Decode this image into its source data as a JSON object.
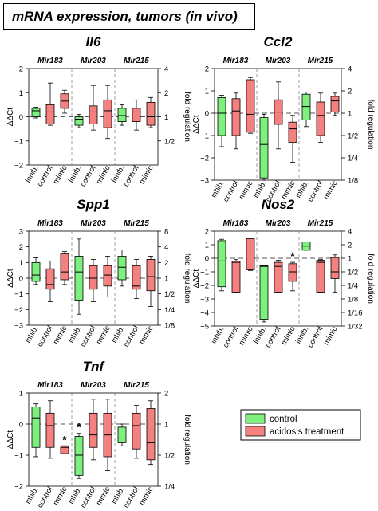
{
  "figure_title": "mRNA expression, tumors (in vivo)",
  "legend": {
    "items": [
      {
        "label": "control",
        "color": "#7ef07e"
      },
      {
        "label": "acidosis treatment",
        "color": "#f58080"
      }
    ]
  },
  "colors": {
    "control": "#7ef07e",
    "acidosis": "#f58080"
  },
  "chart_data": [
    {
      "type": "box",
      "title": "Il6",
      "ylabel": "ΔΔCt",
      "y2label": "fold regulation",
      "ylim": [
        -2,
        2
      ],
      "yticks": [
        -2,
        -1,
        0,
        1,
        2
      ],
      "y2ticks": [
        "4",
        "2",
        "1",
        "1/2"
      ],
      "groups": [
        "Mir183",
        "Mir203",
        "Mir215"
      ],
      "categories": [
        "inhib.",
        "control",
        "mimic"
      ],
      "boxes": [
        {
          "group": "Mir183",
          "category": "inhib.",
          "series": "control",
          "min": -0.05,
          "q1": 0.0,
          "median": 0.25,
          "q3": 0.35,
          "max": 0.4
        },
        {
          "group": "Mir183",
          "category": "control",
          "series": "acidosis",
          "min": -0.35,
          "q1": -0.3,
          "median": 0.2,
          "q3": 0.5,
          "max": 1.4
        },
        {
          "group": "Mir183",
          "category": "mimic",
          "series": "acidosis",
          "min": 0.15,
          "q1": 0.35,
          "median": 0.65,
          "q3": 0.95,
          "max": 1.1
        },
        {
          "group": "Mir203",
          "category": "inhib.",
          "series": "control",
          "min": -0.45,
          "q1": -0.35,
          "median": -0.1,
          "q3": 0.0,
          "max": 0.1
        },
        {
          "group": "Mir203",
          "category": "control",
          "series": "acidosis",
          "min": -0.55,
          "q1": -0.3,
          "median": 0.2,
          "q3": 0.45,
          "max": 1.3
        },
        {
          "group": "Mir203",
          "category": "mimic",
          "series": "acidosis",
          "min": -0.9,
          "q1": -0.45,
          "median": 0.25,
          "q3": 0.7,
          "max": 1.3
        },
        {
          "group": "Mir215",
          "category": "inhib.",
          "series": "control",
          "min": -0.35,
          "q1": -0.2,
          "median": 0.05,
          "q3": 0.35,
          "max": 0.5
        },
        {
          "group": "Mir215",
          "category": "control",
          "series": "acidosis",
          "min": -0.55,
          "q1": -0.2,
          "median": 0.2,
          "q3": 0.35,
          "max": 0.7
        },
        {
          "group": "Mir215",
          "category": "mimic",
          "series": "acidosis",
          "min": -0.45,
          "q1": -0.35,
          "median": 0.0,
          "q3": 0.6,
          "max": 0.8
        }
      ],
      "annotations": []
    },
    {
      "type": "box",
      "title": "Ccl2",
      "ylabel": "ΔΔCt",
      "y2label": "fold regulation",
      "ylim": [
        -3,
        2
      ],
      "yticks": [
        -3,
        -2,
        -1,
        0,
        1,
        2
      ],
      "y2ticks": [
        "4",
        "2",
        "1",
        "1/2",
        "1/4",
        "1/8"
      ],
      "groups": [
        "Mir183",
        "Mir203",
        "Mir215"
      ],
      "categories": [
        "inhib.",
        "control",
        "mimic"
      ],
      "boxes": [
        {
          "group": "Mir183",
          "category": "inhib.",
          "series": "control",
          "min": -1.5,
          "q1": -1.0,
          "median": 0.0,
          "q3": 0.7,
          "max": 0.8
        },
        {
          "group": "Mir183",
          "category": "control",
          "series": "acidosis",
          "min": -1.6,
          "q1": -1.0,
          "median": 0.1,
          "q3": 0.65,
          "max": 0.9
        },
        {
          "group": "Mir183",
          "category": "mimic",
          "series": "acidosis",
          "min": -0.9,
          "q1": -0.85,
          "median": -0.05,
          "q3": 1.5,
          "max": 1.6
        },
        {
          "group": "Mir203",
          "category": "inhib.",
          "series": "control",
          "min": -3.0,
          "q1": -2.9,
          "median": -1.4,
          "q3": -0.2,
          "max": -0.05
        },
        {
          "group": "Mir203",
          "category": "control",
          "series": "acidosis",
          "min": -1.6,
          "q1": -0.5,
          "median": 0.05,
          "q3": 0.6,
          "max": 1.4
        },
        {
          "group": "Mir203",
          "category": "mimic",
          "series": "acidosis",
          "min": -2.2,
          "q1": -1.3,
          "median": -0.7,
          "q3": -0.4,
          "max": -0.1
        },
        {
          "group": "Mir215",
          "category": "inhib.",
          "series": "control",
          "min": -0.6,
          "q1": -0.3,
          "median": 0.3,
          "q3": 0.85,
          "max": 0.95
        },
        {
          "group": "Mir215",
          "category": "control",
          "series": "acidosis",
          "min": -1.3,
          "q1": -1.0,
          "median": -0.1,
          "q3": 0.5,
          "max": 0.9
        },
        {
          "group": "Mir215",
          "category": "mimic",
          "series": "acidosis",
          "min": -0.1,
          "q1": 0.05,
          "median": 0.55,
          "q3": 0.75,
          "max": 0.9
        }
      ],
      "annotations": []
    },
    {
      "type": "box",
      "title": "Spp1",
      "ylabel": "ΔΔCt",
      "y2label": "fold regulation",
      "ylim": [
        -3,
        3
      ],
      "yticks": [
        -3,
        -2,
        -1,
        0,
        1,
        2,
        3
      ],
      "y2ticks": [
        "8",
        "4",
        "2",
        "1",
        "1/2",
        "1/4",
        "1/8"
      ],
      "groups": [
        "Mir183",
        "Mir203",
        "Mir215"
      ],
      "categories": [
        "inhib.",
        "control",
        "mimic"
      ],
      "boxes": [
        {
          "group": "Mir183",
          "category": "inhib.",
          "series": "control",
          "min": -0.4,
          "q1": -0.2,
          "median": 0.2,
          "q3": 1.0,
          "max": 1.3
        },
        {
          "group": "Mir183",
          "category": "control",
          "series": "acidosis",
          "min": -1.5,
          "q1": -0.7,
          "median": -0.4,
          "q3": 0.6,
          "max": 1.1
        },
        {
          "group": "Mir183",
          "category": "mimic",
          "series": "acidosis",
          "min": -0.4,
          "q1": -0.1,
          "median": 0.4,
          "q3": 1.6,
          "max": 1.7
        },
        {
          "group": "Mir203",
          "category": "inhib.",
          "series": "control",
          "min": -2.3,
          "q1": -1.4,
          "median": 0.4,
          "q3": 1.4,
          "max": 2.5
        },
        {
          "group": "Mir203",
          "category": "control",
          "series": "acidosis",
          "min": -1.5,
          "q1": -0.7,
          "median": 0.0,
          "q3": 0.8,
          "max": 1.2
        },
        {
          "group": "Mir203",
          "category": "mimic",
          "series": "acidosis",
          "min": -1.2,
          "q1": -0.5,
          "median": 0.2,
          "q3": 0.8,
          "max": 1.4
        },
        {
          "group": "Mir215",
          "category": "inhib.",
          "series": "control",
          "min": -0.5,
          "q1": -0.1,
          "median": 0.7,
          "q3": 1.4,
          "max": 1.8
        },
        {
          "group": "Mir215",
          "category": "control",
          "series": "acidosis",
          "min": -1.3,
          "q1": -0.7,
          "median": -0.5,
          "q3": 0.8,
          "max": 1.2
        },
        {
          "group": "Mir215",
          "category": "mimic",
          "series": "acidosis",
          "min": -1.8,
          "q1": -0.8,
          "median": 0.1,
          "q3": 1.2,
          "max": 1.4
        }
      ],
      "annotations": []
    },
    {
      "type": "box",
      "title": "Nos2",
      "ylabel": "ΔΔCt",
      "y2label": "fold regulation",
      "ylim": [
        -5,
        2
      ],
      "yticks": [
        -5,
        -4,
        -3,
        -2,
        -1,
        0,
        1,
        2
      ],
      "y2ticks": [
        "4",
        "2",
        "1",
        "1/2",
        "1/4",
        "1/8",
        "1/16",
        "1/32"
      ],
      "groups": [
        "Mir183",
        "Mir203",
        "Mir215"
      ],
      "categories": [
        "inhib.",
        "control",
        "mimic"
      ],
      "boxes": [
        {
          "group": "Mir183",
          "category": "inhib.",
          "series": "control",
          "min": -2.4,
          "q1": -2.1,
          "median": -0.2,
          "q3": 1.3,
          "max": 1.4
        },
        {
          "group": "Mir183",
          "category": "control",
          "series": "acidosis",
          "min": -2.5,
          "q1": -2.5,
          "median": -0.3,
          "q3": -0.2,
          "max": -0.1
        },
        {
          "group": "Mir183",
          "category": "mimic",
          "series": "acidosis",
          "min": -0.9,
          "q1": -0.85,
          "median": -0.5,
          "q3": 1.45,
          "max": 1.5
        },
        {
          "group": "Mir203",
          "category": "inhib.",
          "series": "control",
          "min": -4.7,
          "q1": -4.5,
          "median": -0.6,
          "q3": -0.55,
          "max": -0.5
        },
        {
          "group": "Mir203",
          "category": "control",
          "series": "acidosis",
          "min": -2.5,
          "q1": -2.5,
          "median": -0.6,
          "q3": -0.3,
          "max": -0.15
        },
        {
          "group": "Mir203",
          "category": "mimic",
          "series": "acidosis",
          "min": -2.4,
          "q1": -1.7,
          "median": -1.0,
          "q3": -0.4,
          "max": -0.3
        },
        {
          "group": "Mir215",
          "category": "inhib.",
          "series": "control",
          "min": 0.6,
          "q1": 0.6,
          "median": 0.9,
          "q3": 1.2,
          "max": 1.2
        },
        {
          "group": "Mir215",
          "category": "control",
          "series": "acidosis",
          "min": -2.5,
          "q1": -2.5,
          "median": -0.3,
          "q3": -0.15,
          "max": -0.1
        },
        {
          "group": "Mir215",
          "category": "mimic",
          "series": "acidosis",
          "min": -2.5,
          "q1": -1.5,
          "median": -1.0,
          "q3": 0.05,
          "max": 0.25
        }
      ],
      "annotations": [
        {
          "group": "Mir203",
          "category": "mimic",
          "text": "*"
        }
      ]
    },
    {
      "type": "box",
      "title": "Tnf",
      "ylabel": "ΔΔCt",
      "y2label": "fold regulation",
      "ylim": [
        -2,
        1
      ],
      "yticks": [
        -2,
        -1,
        0,
        1
      ],
      "y2ticks": [
        "2",
        "1",
        "1/2",
        "1/4"
      ],
      "groups": [
        "Mir183",
        "Mir203",
        "Mir215"
      ],
      "categories": [
        "inhib.",
        "control",
        "mimic"
      ],
      "boxes": [
        {
          "group": "Mir183",
          "category": "inhib.",
          "series": "control",
          "min": -1.05,
          "q1": -0.75,
          "median": 0.2,
          "q3": 0.55,
          "max": 0.65
        },
        {
          "group": "Mir183",
          "category": "control",
          "series": "acidosis",
          "min": -1.1,
          "q1": -0.75,
          "median": -0.05,
          "q3": 0.35,
          "max": 0.75
        },
        {
          "group": "Mir183",
          "category": "mimic",
          "series": "acidosis",
          "min": -0.95,
          "q1": -0.95,
          "median": -0.75,
          "q3": -0.7,
          "max": -0.7
        },
        {
          "group": "Mir203",
          "category": "inhib.",
          "series": "control",
          "min": -1.75,
          "q1": -1.65,
          "median": -1.0,
          "q3": -0.4,
          "max": -0.3
        },
        {
          "group": "Mir203",
          "category": "control",
          "series": "acidosis",
          "min": -1.15,
          "q1": -0.75,
          "median": -0.35,
          "q3": 0.35,
          "max": 0.8
        },
        {
          "group": "Mir203",
          "category": "mimic",
          "series": "acidosis",
          "min": -1.5,
          "q1": -1.05,
          "median": -0.35,
          "q3": 0.35,
          "max": 0.8
        },
        {
          "group": "Mir215",
          "category": "inhib.",
          "series": "control",
          "min": -0.7,
          "q1": -0.6,
          "median": -0.45,
          "q3": -0.1,
          "max": 0.0
        },
        {
          "group": "Mir215",
          "category": "control",
          "series": "acidosis",
          "min": -1.1,
          "q1": -0.8,
          "median": -0.05,
          "q3": 0.35,
          "max": 0.6
        },
        {
          "group": "Mir215",
          "category": "mimic",
          "series": "acidosis",
          "min": -1.3,
          "q1": -1.15,
          "median": -0.6,
          "q3": 0.5,
          "max": 0.75
        }
      ],
      "annotations": [
        {
          "group": "Mir183",
          "category": "mimic",
          "text": "*"
        },
        {
          "group": "Mir203",
          "category": "inhib.",
          "text": "*"
        }
      ]
    }
  ]
}
